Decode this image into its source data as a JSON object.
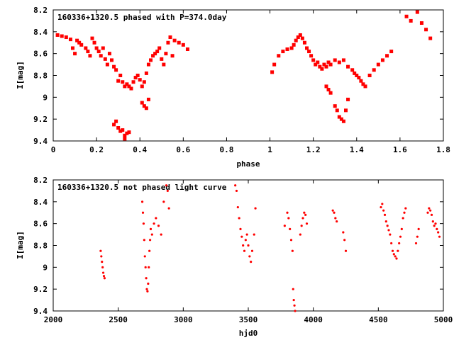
{
  "chart_data": [
    {
      "type": "scatter",
      "title": "160336+1320.5 phased with P=374.0day",
      "xlabel": "phase",
      "ylabel": "I[mag]",
      "xlim": [
        0,
        1.8
      ],
      "ylim": [
        8.2,
        9.4
      ],
      "y_inverted": true,
      "grid": false,
      "marker": "square",
      "color": "#ff0000",
      "xticks": [
        "0",
        "0.2",
        "0.4",
        "0.6",
        "0.8",
        "1",
        "1.2",
        "1.4",
        "1.6",
        "1.8"
      ],
      "yticks": [
        "8.2",
        "8.4",
        "8.6",
        "8.8",
        "9",
        "9.2",
        "9.4"
      ],
      "x": [
        0.02,
        0.04,
        0.06,
        0.08,
        0.09,
        0.1,
        0.11,
        0.12,
        0.13,
        0.15,
        0.16,
        0.17,
        0.18,
        0.19,
        0.2,
        0.21,
        0.22,
        0.23,
        0.24,
        0.25,
        0.26,
        0.27,
        0.28,
        0.29,
        0.3,
        0.31,
        0.32,
        0.33,
        0.34,
        0.35,
        0.36,
        0.37,
        0.38,
        0.39,
        0.4,
        0.41,
        0.42,
        0.43,
        0.44,
        0.45,
        0.46,
        0.47,
        0.48,
        0.49,
        0.5,
        0.51,
        0.52,
        0.53,
        0.54,
        0.55,
        0.56,
        0.58,
        0.6,
        0.62,
        0.28,
        0.29,
        0.3,
        0.31,
        0.32,
        0.33,
        0.34,
        0.33,
        0.35,
        0.41,
        0.42,
        0.43,
        0.44,
        1.01,
        1.02,
        1.04,
        1.06,
        1.08,
        1.1,
        1.11,
        1.12,
        1.13,
        1.14,
        1.15,
        1.16,
        1.17,
        1.18,
        1.19,
        1.2,
        1.21,
        1.22,
        1.23,
        1.24,
        1.25,
        1.26,
        1.27,
        1.28,
        1.3,
        1.32,
        1.34,
        1.36,
        1.38,
        1.39,
        1.4,
        1.41,
        1.42,
        1.43,
        1.44,
        1.46,
        1.48,
        1.5,
        1.52,
        1.54,
        1.56,
        1.26,
        1.27,
        1.28,
        1.3,
        1.31,
        1.32,
        1.33,
        1.34,
        1.35,
        1.36,
        1.63,
        1.65,
        1.68,
        1.7,
        1.72,
        1.74
      ],
      "y": [
        8.43,
        8.44,
        8.45,
        8.47,
        8.55,
        8.6,
        8.48,
        8.5,
        8.52,
        8.55,
        8.58,
        8.62,
        8.46,
        8.5,
        8.55,
        8.58,
        8.62,
        8.55,
        8.65,
        8.7,
        8.6,
        8.66,
        8.72,
        8.75,
        8.85,
        8.8,
        8.86,
        8.9,
        8.88,
        8.9,
        8.92,
        8.86,
        8.82,
        8.8,
        8.84,
        8.9,
        8.86,
        8.78,
        8.7,
        8.66,
        8.62,
        8.6,
        8.58,
        8.55,
        8.65,
        8.7,
        8.6,
        8.5,
        8.45,
        8.62,
        8.48,
        8.5,
        8.52,
        8.56,
        9.25,
        9.22,
        9.28,
        9.31,
        9.3,
        9.35,
        9.33,
        9.38,
        9.32,
        9.05,
        9.08,
        9.1,
        9.02,
        8.77,
        8.7,
        8.62,
        8.58,
        8.56,
        8.55,
        8.52,
        8.48,
        8.45,
        8.43,
        8.46,
        8.5,
        8.55,
        8.58,
        8.62,
        8.66,
        8.7,
        8.68,
        8.72,
        8.74,
        8.7,
        8.72,
        8.68,
        8.7,
        8.66,
        8.68,
        8.66,
        8.72,
        8.75,
        8.78,
        8.8,
        8.82,
        8.85,
        8.88,
        8.9,
        8.8,
        8.75,
        8.7,
        8.66,
        8.62,
        8.58,
        8.9,
        8.93,
        8.96,
        9.08,
        9.12,
        9.18,
        9.2,
        9.22,
        9.12,
        9.02,
        8.26,
        8.3,
        8.22,
        8.32,
        8.38,
        8.46
      ]
    },
    {
      "type": "scatter",
      "title": "160336+1320.5 not phased light curve",
      "xlabel": "hjd0",
      "ylabel": "I[mag]",
      "xlim": [
        2000,
        5000
      ],
      "ylim": [
        8.2,
        9.4
      ],
      "y_inverted": true,
      "grid": false,
      "marker": "dot",
      "color": "#ff0000",
      "xticks": [
        "2000",
        "2500",
        "3000",
        "3500",
        "4000",
        "4500",
        "5000"
      ],
      "yticks": [
        "8.2",
        "8.4",
        "8.6",
        "8.8",
        "9",
        "9.2",
        "9.4"
      ],
      "x": [
        2365,
        2370,
        2375,
        2380,
        2385,
        2390,
        2395,
        2685,
        2690,
        2695,
        2700,
        2705,
        2710,
        2715,
        2720,
        2725,
        2730,
        2735,
        2740,
        2745,
        2750,
        2760,
        2775,
        2790,
        2810,
        2830,
        2850,
        2870,
        2880,
        2890,
        3400,
        3410,
        3420,
        3430,
        3440,
        3450,
        3460,
        3470,
        3480,
        3490,
        3500,
        3510,
        3520,
        3530,
        3545,
        3555,
        3780,
        3800,
        3810,
        3820,
        3830,
        3840,
        3845,
        3850,
        3855,
        3860,
        3900,
        3910,
        3920,
        3930,
        3940,
        3950,
        4150,
        4160,
        4170,
        4180,
        4230,
        4240,
        4250,
        4520,
        4530,
        4540,
        4550,
        4560,
        4570,
        4580,
        4590,
        4600,
        4610,
        4620,
        4630,
        4640,
        4650,
        4660,
        4670,
        4680,
        4690,
        4700,
        4710,
        4790,
        4800,
        4810,
        4880,
        4890,
        4900,
        4910,
        4920,
        4930,
        4940,
        4950,
        4960,
        4970
      ],
      "y": [
        8.85,
        8.9,
        8.95,
        9.0,
        9.05,
        9.08,
        9.1,
        8.4,
        8.5,
        8.6,
        8.75,
        8.9,
        9.0,
        9.1,
        9.2,
        9.22,
        9.15,
        9.0,
        8.85,
        8.75,
        8.65,
        8.7,
        8.6,
        8.55,
        8.62,
        8.7,
        8.4,
        8.25,
        8.3,
        8.46,
        8.25,
        8.3,
        8.45,
        8.55,
        8.65,
        8.72,
        8.8,
        8.85,
        8.75,
        8.7,
        8.8,
        8.9,
        8.95,
        8.85,
        8.7,
        8.46,
        8.62,
        8.5,
        8.55,
        8.65,
        8.75,
        8.85,
        9.2,
        9.3,
        9.35,
        9.4,
        8.7,
        8.62,
        8.55,
        8.5,
        8.52,
        8.6,
        8.48,
        8.5,
        8.55,
        8.58,
        8.68,
        8.75,
        8.85,
        8.45,
        8.42,
        8.48,
        8.52,
        8.58,
        8.62,
        8.66,
        8.7,
        8.78,
        8.85,
        8.88,
        8.9,
        8.92,
        8.85,
        8.78,
        8.72,
        8.65,
        8.55,
        8.5,
        8.46,
        8.78,
        8.72,
        8.65,
        8.5,
        8.46,
        8.48,
        8.52,
        8.58,
        8.62,
        8.6,
        8.65,
        8.68,
        8.72
      ]
    }
  ]
}
